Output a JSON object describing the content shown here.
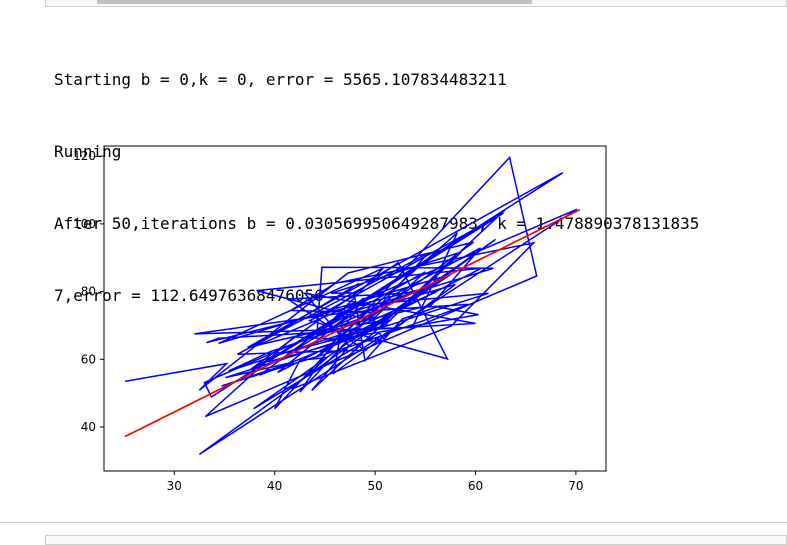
{
  "output": {
    "lines": [
      "Starting b = 0,k = 0, error = 5565.107834483211",
      "Running",
      "After 50,iterations b = 0.030569950649287983, k = 1.478890378131835",
      "7,error = 112.64976368476056"
    ]
  },
  "colors": {
    "data_line": "#0000ff",
    "fit_line": "#ff0000",
    "axes": "#000000"
  },
  "chart_data": {
    "type": "line",
    "xlim": [
      23,
      73
    ],
    "ylim": [
      27,
      123
    ],
    "x_ticks": [
      30,
      40,
      50,
      60,
      70
    ],
    "y_ticks": [
      40,
      60,
      80,
      100,
      120
    ],
    "grid": false,
    "series": [
      {
        "color": "#0000ff",
        "points": [
          [
            25.1,
            53.5
          ],
          [
            35.2,
            58.7
          ],
          [
            32.5,
            50.9
          ],
          [
            47.3,
            85.5
          ],
          [
            59.8,
            94.6
          ],
          [
            44.1,
            60.5
          ],
          [
            58.2,
            97.4
          ],
          [
            53.7,
            69.4
          ],
          [
            32.0,
            67.5
          ],
          [
            47.8,
            74.1
          ],
          [
            40.3,
            56.1
          ],
          [
            60.6,
            86.9
          ],
          [
            38.2,
            80.3
          ],
          [
            51.1,
            70.3
          ],
          [
            38.5,
            55.3
          ],
          [
            48.9,
            78.1
          ],
          [
            42.5,
            50.3
          ],
          [
            55.3,
            91.4
          ],
          [
            36.3,
            61.5
          ],
          [
            49.0,
            62.7
          ],
          [
            41.3,
            77.8
          ],
          [
            56.1,
            79.9
          ],
          [
            46.4,
            67.1
          ],
          [
            35.4,
            56.5
          ],
          [
            39.6,
            62.3
          ],
          [
            50.0,
            72.5
          ],
          [
            55.0,
            85.8
          ],
          [
            37.6,
            57.0
          ],
          [
            52.3,
            88.6
          ],
          [
            57.2,
            60.1
          ],
          [
            43.5,
            71.4
          ],
          [
            62.8,
            103.2
          ],
          [
            39.3,
            59.2
          ],
          [
            48.2,
            66.4
          ],
          [
            57.5,
            85.0
          ],
          [
            34.4,
            64.7
          ],
          [
            50.8,
            86.9
          ],
          [
            44.2,
            66.8
          ],
          [
            44.7,
            87.2
          ],
          [
            61.8,
            86.9
          ],
          [
            47.6,
            73.9
          ],
          [
            52.8,
            75.0
          ],
          [
            59.3,
            76.2
          ],
          [
            48.7,
            64.9
          ],
          [
            34.7,
            52.1
          ],
          [
            41.9,
            59.2
          ],
          [
            35.1,
            54.6
          ],
          [
            61.3,
            79.5
          ],
          [
            47.0,
            75.5
          ],
          [
            45.9,
            55.9
          ],
          [
            58.0,
            82.1
          ],
          [
            47.9,
            73.4
          ],
          [
            41.9,
            62.6
          ],
          [
            50.9,
            69.9
          ],
          [
            58.6,
            91.7
          ],
          [
            45.6,
            79.5
          ],
          [
            47.9,
            79.6
          ],
          [
            49.0,
            59.6
          ],
          [
            52.7,
            71.9
          ],
          [
            56.2,
            75.5
          ],
          [
            60.3,
            73.2
          ],
          [
            45.0,
            65.2
          ],
          [
            51.6,
            71.5
          ],
          [
            48.2,
            70.2
          ],
          [
            51.9,
            79.1
          ],
          [
            60.5,
            92.9
          ],
          [
            55.6,
            76.0
          ],
          [
            37.3,
            63.5
          ],
          [
            68.7,
            115.1
          ],
          [
            33.7,
            48.9
          ],
          [
            33.0,
            53.1
          ],
          [
            54.2,
            80.4
          ],
          [
            33.2,
            64.9
          ],
          [
            34.4,
            66.2
          ],
          [
            60.0,
            70.6
          ],
          [
            43.0,
            79.5
          ],
          [
            47.4,
            63.9
          ],
          [
            43.7,
            50.8
          ],
          [
            62.9,
            104.0
          ],
          [
            43.9,
            67.3
          ],
          [
            50.2,
            73.7
          ],
          [
            41.6,
            74.4
          ],
          [
            46.1,
            82.5
          ],
          [
            65.8,
            94.4
          ],
          [
            57.6,
            69.9
          ],
          [
            41.7,
            51.2
          ],
          [
            45.2,
            60.5
          ],
          [
            42.5,
            59.7
          ],
          [
            40.0,
            45.4
          ],
          [
            63.4,
            119.6
          ],
          [
            66.1,
            84.6
          ],
          [
            33.1,
            43.1
          ],
          [
            41.9,
            66.6
          ],
          [
            51.1,
            65.2
          ],
          [
            50.4,
            67.8
          ],
          [
            37.9,
            45.4
          ],
          [
            62.0,
            95.4
          ],
          [
            32.5,
            31.9
          ],
          [
            70.1,
            104.3
          ],
          [
            37.7,
            63.4
          ],
          [
            48.4,
            82.4
          ]
        ]
      },
      {
        "color": "#ff0000",
        "points": [
          [
            25.1,
            37.2
          ],
          [
            70.4,
            104.2
          ]
        ]
      }
    ]
  }
}
